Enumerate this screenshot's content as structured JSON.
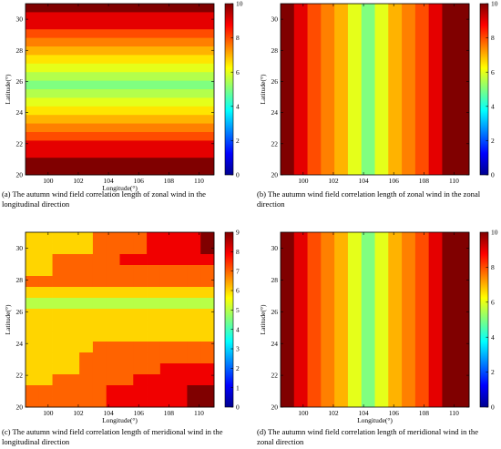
{
  "chart_data": [
    {
      "type": "heatmap",
      "caption": "(a) The autumn wind field correlation length of zonal wind in the longitudinal direction",
      "xlabel": "Longitude(°)",
      "ylabel": "Latitude(°)",
      "xlim": [
        98.5,
        111
      ],
      "ylim": [
        20,
        31
      ],
      "x_ticks": [
        100,
        102,
        104,
        106,
        108,
        110
      ],
      "y_ticks": [
        20,
        22,
        24,
        26,
        28,
        30
      ],
      "colorbar_range": [
        0,
        10
      ],
      "colorbar_ticks": [
        0,
        2,
        4,
        6,
        8,
        10
      ],
      "bands": "rows",
      "values": [
        10,
        9,
        9,
        8,
        7.5,
        7,
        6.5,
        6,
        5.5,
        5,
        5.5,
        6,
        6.5,
        7,
        7.5,
        8,
        9,
        9,
        10,
        10
      ]
    },
    {
      "type": "heatmap",
      "caption": "(b) The autumn wind field correlation length of zonal wind  in the zonal direction",
      "xlabel": "",
      "ylabel": "Latitude(°)",
      "xlim": [
        98.5,
        111
      ],
      "ylim": [
        20,
        31
      ],
      "x_ticks": [
        100,
        102,
        104,
        106,
        108,
        110
      ],
      "y_ticks": [
        20,
        22,
        24,
        26,
        28,
        30
      ],
      "colorbar_range": [
        0,
        10
      ],
      "colorbar_ticks": [
        0,
        2,
        4,
        6,
        8,
        10
      ],
      "bands": "columns",
      "values": [
        10,
        9,
        8,
        7.5,
        7,
        6,
        5,
        6,
        7,
        7.5,
        8,
        9,
        10,
        10
      ]
    },
    {
      "type": "heatmap",
      "caption": "(c) The autumn wind field correlation length of meridional wind in the longitudinal direction",
      "xlabel": "Longitude(°)",
      "ylabel": "Latitude(°)",
      "xlim": [
        98.5,
        111
      ],
      "ylim": [
        20,
        31
      ],
      "x_ticks": [
        100,
        102,
        104,
        106,
        108,
        110
      ],
      "y_ticks": [
        20,
        22,
        24,
        26,
        28,
        30
      ],
      "colorbar_range": [
        0,
        9
      ],
      "colorbar_ticks": [
        0,
        1,
        2,
        3,
        4,
        5,
        6,
        7,
        8,
        9
      ],
      "bands": "grid",
      "grid_rows": [
        [
          6,
          6,
          6,
          6,
          6,
          7,
          7,
          7,
          7,
          8,
          8,
          8,
          8,
          9
        ],
        [
          6,
          6,
          6,
          6,
          6,
          7,
          7,
          7,
          7,
          8,
          8,
          8,
          8,
          9
        ],
        [
          6,
          6,
          7,
          7,
          7,
          7,
          7,
          8,
          8,
          8,
          8,
          8,
          8,
          8
        ],
        [
          6,
          6,
          7,
          7,
          7,
          7,
          7,
          7,
          7,
          7,
          7,
          7,
          7,
          7
        ],
        [
          7,
          7,
          7,
          7,
          7,
          7,
          7,
          7,
          7,
          7,
          7,
          7,
          7,
          7
        ],
        [
          6,
          6,
          6,
          6,
          6,
          6,
          6,
          6,
          6,
          6,
          6,
          6,
          6,
          6
        ],
        [
          5,
          5,
          5,
          5,
          5,
          5,
          5,
          5,
          5,
          5,
          5,
          5,
          5,
          5
        ],
        [
          6,
          6,
          6,
          6,
          6,
          6,
          6,
          6,
          6,
          6,
          6,
          6,
          6,
          6
        ],
        [
          6,
          6,
          6,
          6,
          6,
          6,
          6,
          6,
          6,
          6,
          6,
          6,
          6,
          6
        ],
        [
          6,
          6,
          6,
          6,
          6,
          6,
          6,
          6,
          6,
          6,
          6,
          6,
          6,
          6
        ],
        [
          6,
          6,
          6,
          6,
          6,
          7,
          7,
          7,
          7,
          7,
          7,
          7,
          7,
          7
        ],
        [
          6,
          6,
          6,
          6,
          7,
          7,
          7,
          7,
          7,
          7,
          7,
          7,
          7,
          7
        ],
        [
          6,
          6,
          6,
          6,
          7,
          7,
          7,
          7,
          7,
          7,
          8,
          8,
          8,
          8
        ],
        [
          6,
          6,
          7,
          7,
          7,
          7,
          7,
          7,
          8,
          8,
          8,
          8,
          8,
          8
        ],
        [
          7,
          7,
          7,
          7,
          7,
          7,
          8,
          8,
          8,
          8,
          8,
          8,
          9,
          9
        ],
        [
          7,
          7,
          7,
          7,
          7,
          7,
          8,
          8,
          8,
          8,
          8,
          8,
          9,
          9
        ]
      ]
    },
    {
      "type": "heatmap",
      "caption": "(d) The autumn wind field correlation length of meridional wind in the zonal direction",
      "xlabel": "Longitude(°)",
      "ylabel": "Latitude(°)",
      "xlim": [
        98.5,
        111
      ],
      "ylim": [
        20,
        31
      ],
      "x_ticks": [
        100,
        102,
        104,
        106,
        108,
        110
      ],
      "y_ticks": [
        20,
        22,
        24,
        26,
        28,
        30
      ],
      "colorbar_range": [
        0,
        10
      ],
      "colorbar_ticks": [
        0,
        2,
        4,
        6,
        8,
        10
      ],
      "bands": "columns",
      "values": [
        10,
        9,
        8,
        7.5,
        7,
        6,
        5,
        6,
        7,
        7.5,
        8,
        9,
        10,
        10
      ]
    }
  ]
}
